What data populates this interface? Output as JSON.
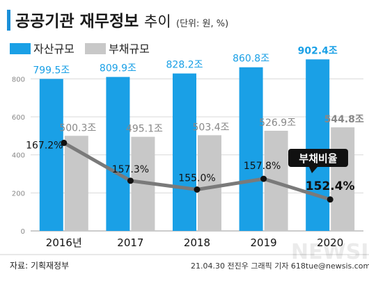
{
  "title": {
    "bold": "공공기관 재무정보",
    "light": "추이",
    "unit": "(단위: 원, %)"
  },
  "legend": {
    "asset": "자산규모",
    "debt": "부채규모"
  },
  "source": "자료: 기획재정부",
  "credit": "21.04.30 전진우 그래픽 기자 618tue@newsis.com",
  "watermark": "NEWSIS",
  "ratio_badge": "부채비율",
  "colors": {
    "asset": "#1aa0e6",
    "debt": "#c8c8c8",
    "line": "#7a7a7a",
    "dot": "#111111",
    "title_bar": "#1a8fd8"
  },
  "chart_data": {
    "type": "bar",
    "categories": [
      "2016년",
      "2017",
      "2018",
      "2019",
      "2020"
    ],
    "ylim": [
      0,
      900
    ],
    "yticks": [
      0,
      200,
      400,
      600,
      800
    ],
    "series": [
      {
        "name": "자산규모",
        "values": [
          799.5,
          809.9,
          828.2,
          860.8,
          902.4
        ],
        "labels": [
          "799.5조",
          "809.9조",
          "828.2조",
          "860.8조",
          "902.4조"
        ]
      },
      {
        "name": "부채규모",
        "values": [
          500.3,
          495.1,
          503.4,
          526.9,
          544.8
        ],
        "labels": [
          "500.3조",
          "495.1조",
          "503.4조",
          "526.9조",
          "544.8조"
        ]
      }
    ],
    "ratio_line": {
      "name": "부채비율",
      "values": [
        167.2,
        157.3,
        155.0,
        157.8,
        152.4
      ],
      "labels": [
        "167.2%",
        "157.3%",
        "155.0%",
        "157.8%",
        "152.4%"
      ]
    }
  }
}
